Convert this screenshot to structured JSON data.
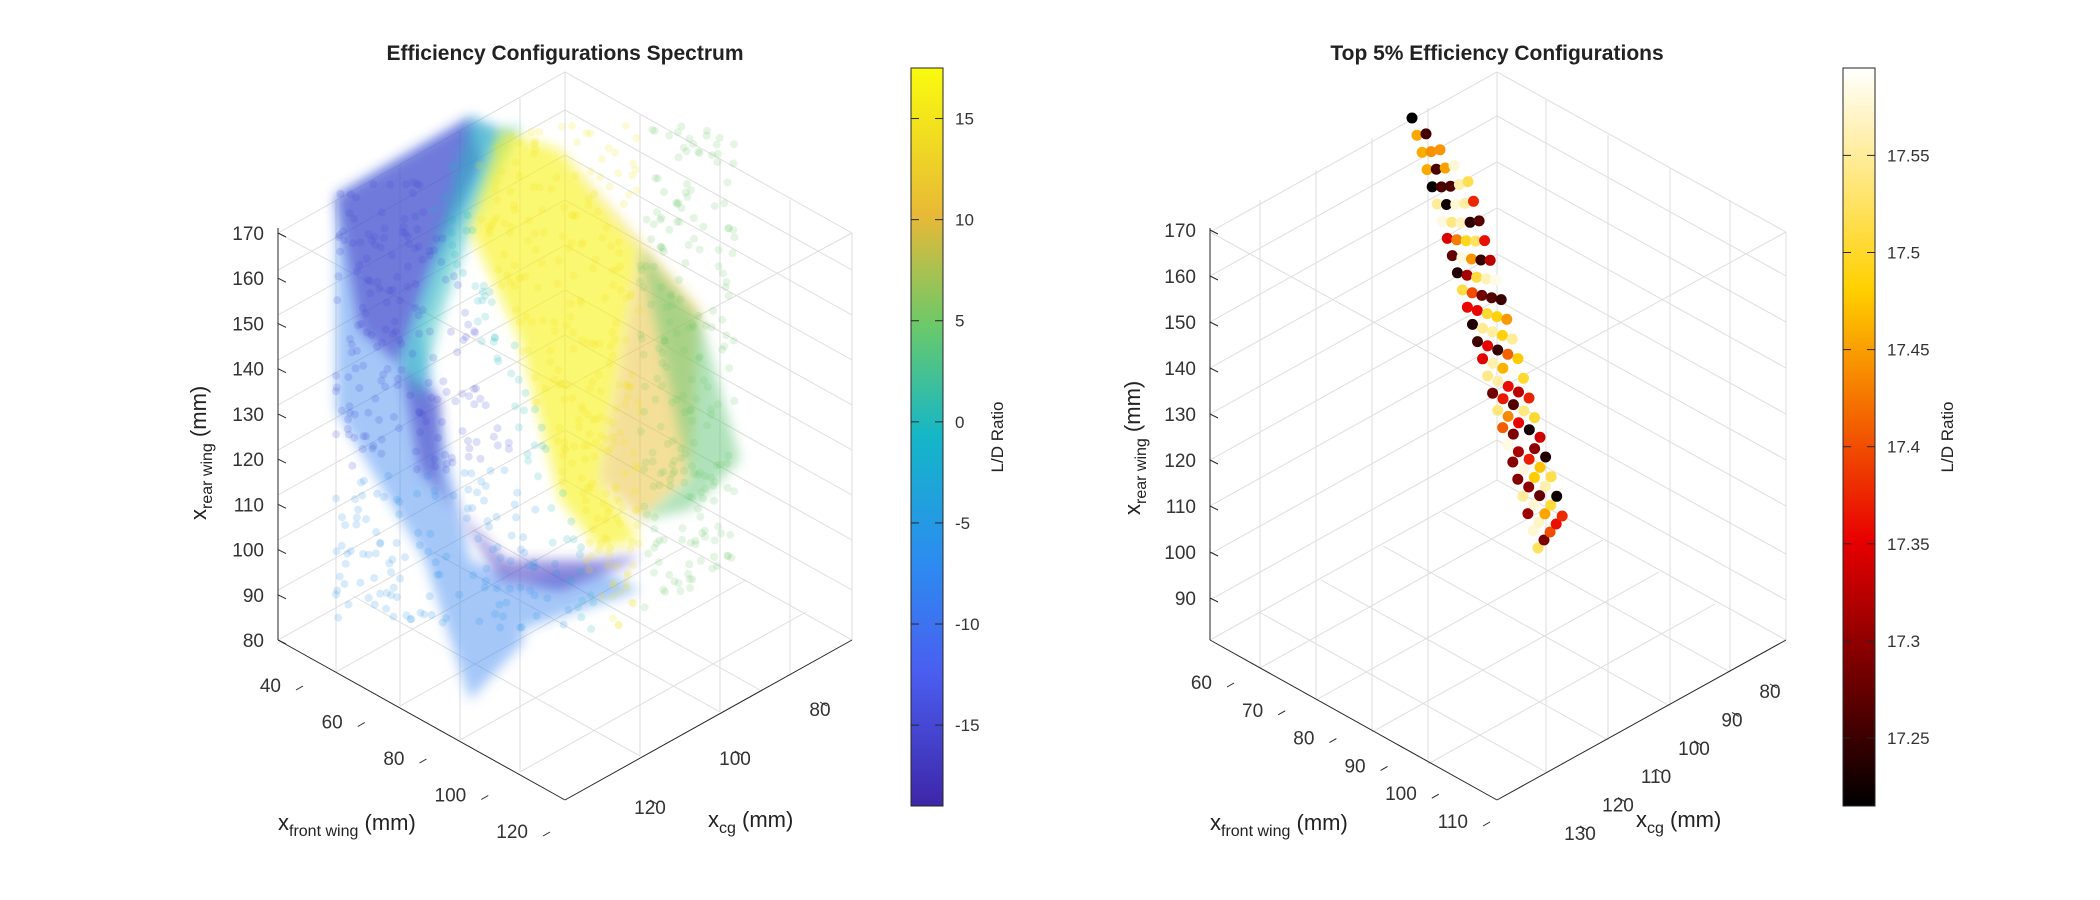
{
  "figure": {
    "background": "#ffffff"
  },
  "chart_data": [
    {
      "type": "scatter",
      "title": "Efficiency Configurations Spectrum",
      "xlabel": {
        "main": "x",
        "sub": "cg",
        "unit": " (mm)"
      },
      "ylabel": {
        "main": "x",
        "sub": "front wing",
        "unit": " (mm)"
      },
      "zlabel": {
        "main": "x",
        "sub": "rear wing",
        "unit": " (mm)"
      },
      "x_ticks": [
        "80",
        "100",
        "120"
      ],
      "y_ticks": [
        "40",
        "60",
        "80",
        "100",
        "120"
      ],
      "z_ticks": [
        "80",
        "90",
        "100",
        "110",
        "120",
        "130",
        "140",
        "150",
        "160",
        "170"
      ],
      "colorbar": {
        "label": "L/D Ratio",
        "colormap": "parula",
        "ticks": [
          "15",
          "10",
          "5",
          "0",
          "-5",
          "-10",
          "-15"
        ],
        "range": [
          -19,
          17.5
        ]
      },
      "regions": [
        {
          "name": "",
          "value": -8,
          "opacity": 0.45
        },
        {
          "name": "",
          "value": -16.5,
          "opacity": 0.55
        },
        {
          "name": "",
          "value": 0,
          "opacity": 0.5
        },
        {
          "name": "",
          "value": 16.5,
          "opacity": 0.6
        },
        {
          "name": "",
          "value": 11,
          "opacity": 0.5
        },
        {
          "name": "",
          "value": 4,
          "opacity": 0.5
        }
      ]
    },
    {
      "type": "scatter",
      "title": "Top 5% Efficiency Configurations",
      "xlabel": {
        "main": "x",
        "sub": "cg",
        "unit": " (mm)"
      },
      "ylabel": {
        "main": "x",
        "sub": "front wing",
        "unit": " (mm)"
      },
      "zlabel": {
        "main": "x",
        "sub": "rear wing",
        "unit": " (mm)"
      },
      "x_ticks": [
        "80",
        "90",
        "100",
        "110",
        "120",
        "130"
      ],
      "y_ticks": [
        "60",
        "70",
        "80",
        "90",
        "100",
        "110"
      ],
      "z_ticks": [
        "90",
        "100",
        "110",
        "120",
        "130",
        "140",
        "150",
        "160",
        "170"
      ],
      "colorbar": {
        "label": "L/D Ratio",
        "colormap": "hot",
        "ticks": [
          "17.55",
          "17.5",
          "17.45",
          "17.4",
          "17.35",
          "17.3",
          "17.25"
        ],
        "range": [
          17.215,
          17.595
        ]
      },
      "band": {
        "rows": 5,
        "points_per_row": 26,
        "value_min": 17.215,
        "value_max": 17.595
      }
    }
  ]
}
